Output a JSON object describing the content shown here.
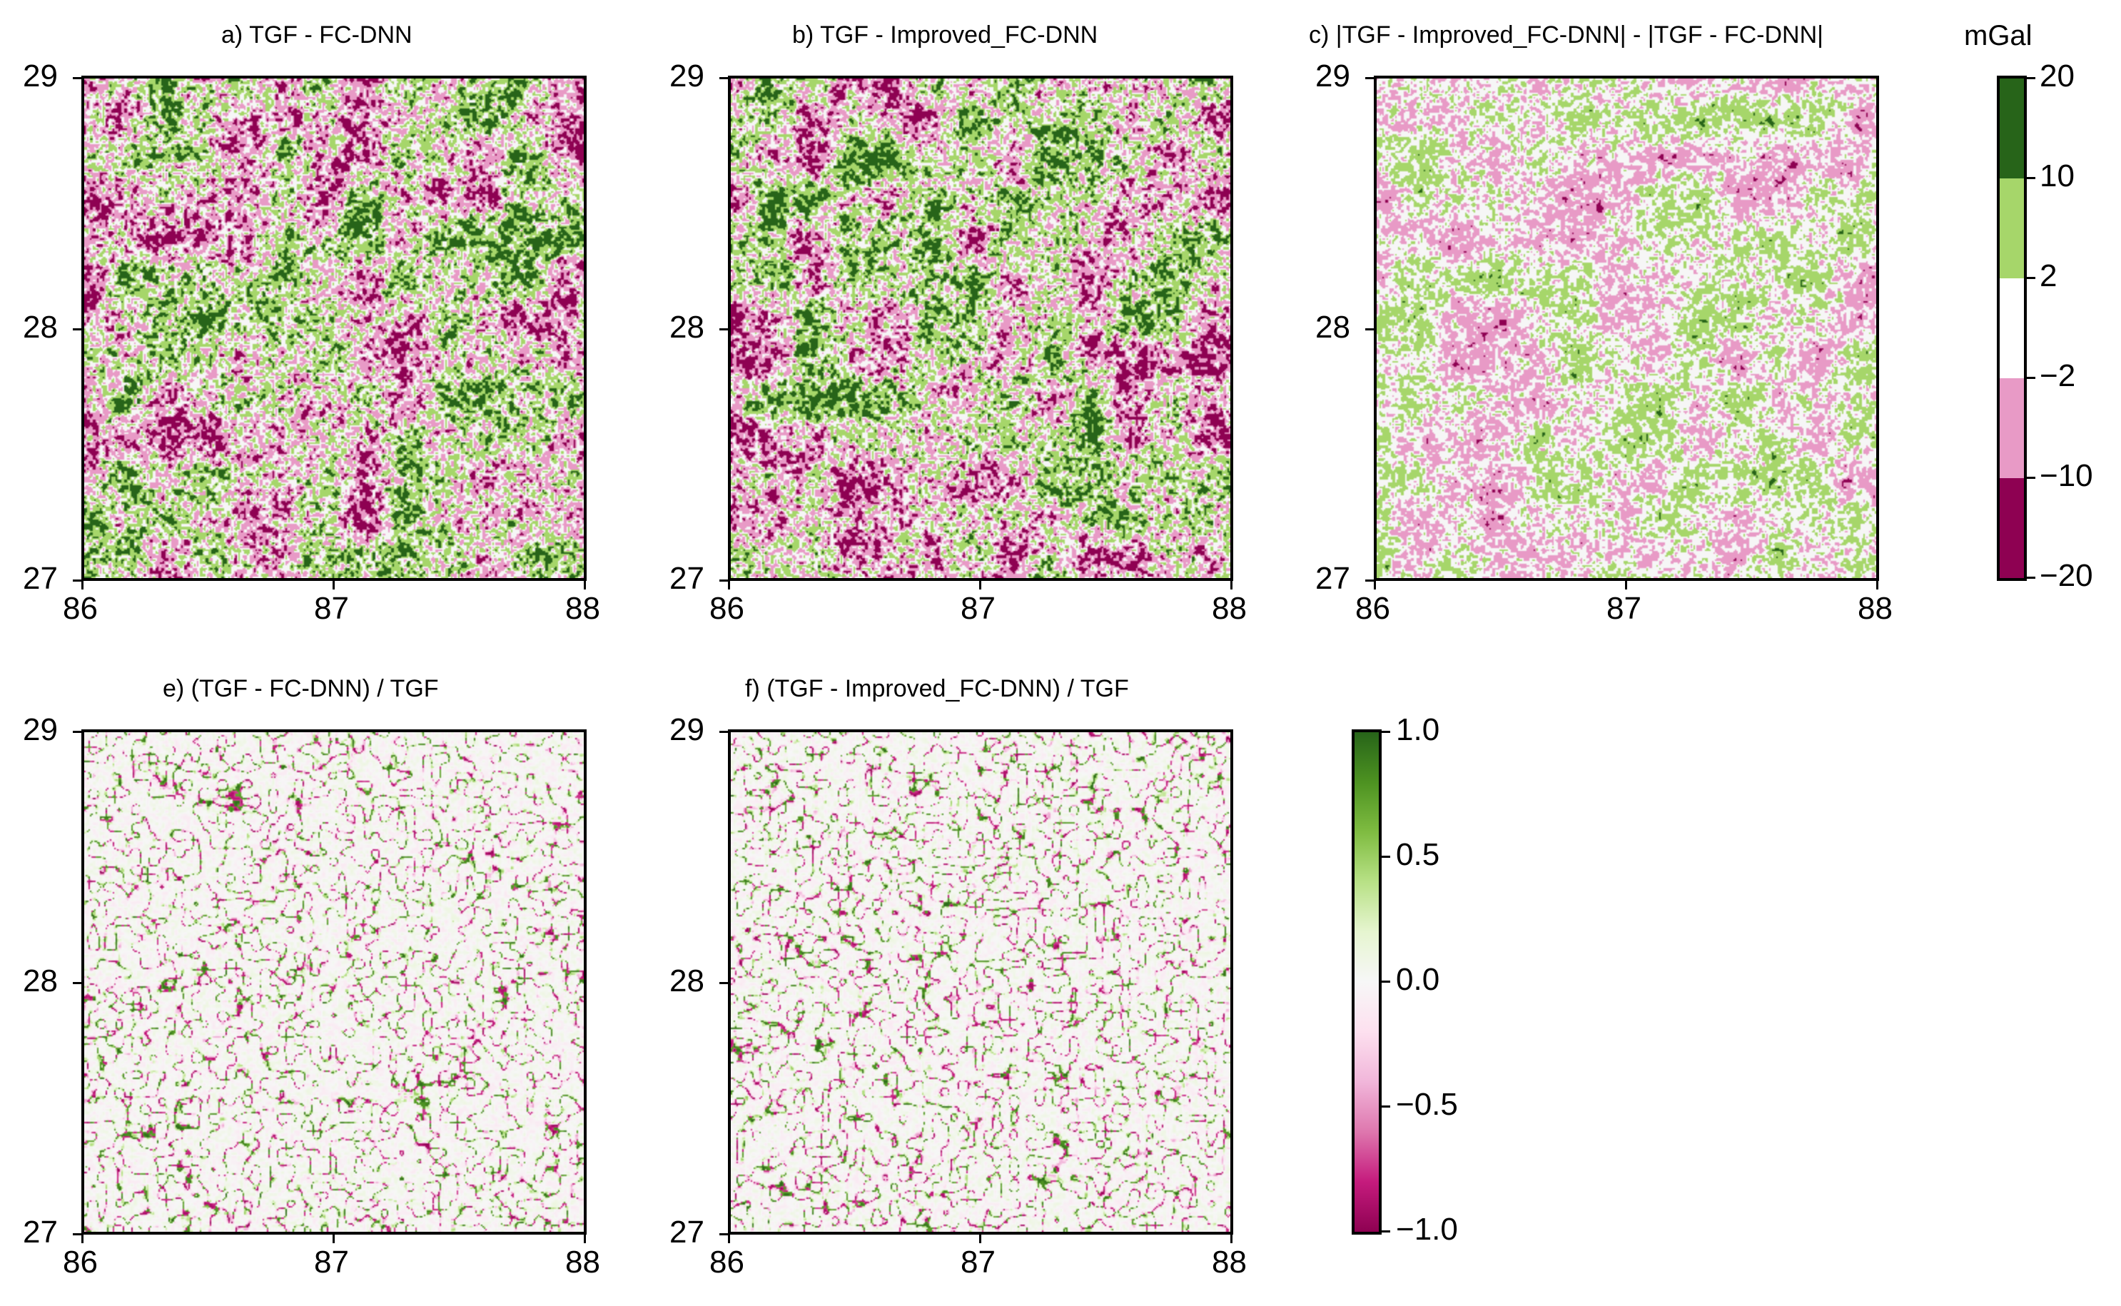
{
  "chart_data": [
    {
      "type": "heatmap",
      "title": "a) TGF - FC-DNN",
      "xlim": [
        86,
        88
      ],
      "ylim": [
        27,
        29
      ],
      "xticks": [
        "86",
        "87",
        "88"
      ],
      "yticks": [
        "27",
        "28",
        "29"
      ],
      "colorscale": "discrete_mgal"
    },
    {
      "type": "heatmap",
      "title": "b) TGF - Improved_FC-DNN",
      "xlim": [
        86,
        88
      ],
      "ylim": [
        27,
        29
      ],
      "xticks": [
        "86",
        "87",
        "88"
      ],
      "yticks": [
        "27",
        "28",
        "29"
      ],
      "colorscale": "discrete_mgal"
    },
    {
      "type": "heatmap",
      "title": "c) |TGF - Improved_FC-DNN| - |TGF - FC-DNN|",
      "xlim": [
        86,
        88
      ],
      "ylim": [
        27,
        29
      ],
      "xticks": [
        "86",
        "87",
        "88"
      ],
      "yticks": [
        "27",
        "28",
        "29"
      ],
      "colorscale": "discrete_mgal"
    },
    {
      "type": "heatmap",
      "title": "e) (TGF - FC-DNN) / TGF",
      "xlim": [
        86,
        88
      ],
      "ylim": [
        27,
        29
      ],
      "xticks": [
        "86",
        "87",
        "88"
      ],
      "yticks": [
        "27",
        "28",
        "29"
      ],
      "colorscale": "continuous_ratio"
    },
    {
      "type": "heatmap",
      "title": "f) (TGF - Improved_FC-DNN) / TGF",
      "xlim": [
        86,
        88
      ],
      "ylim": [
        27,
        29
      ],
      "xticks": [
        "86",
        "87",
        "88"
      ],
      "yticks": [
        "27",
        "28",
        "29"
      ],
      "colorscale": "continuous_ratio"
    }
  ],
  "colorbars": {
    "discrete_mgal": {
      "unit": "mGal",
      "boundaries": [
        -20,
        -10,
        -2,
        2,
        10,
        20
      ],
      "labels": [
        "20",
        "10",
        "2",
        "−2",
        "−10",
        "−20"
      ],
      "colors": [
        "#8e0152",
        "#e89ac6",
        "#ffffff",
        "#a6d66a",
        "#276419"
      ]
    },
    "continuous_ratio": {
      "range": [
        -1.0,
        1.0
      ],
      "labels": [
        "1.0",
        "0.5",
        "0.0",
        "−0.5",
        "−1.0"
      ],
      "stops": [
        "#8e0152",
        "#c51b7d",
        "#de77ae",
        "#f1b6da",
        "#fde0ef",
        "#f7f7f7",
        "#e6f5d0",
        "#b8e186",
        "#7fbc41",
        "#4d9221",
        "#276419"
      ]
    }
  }
}
